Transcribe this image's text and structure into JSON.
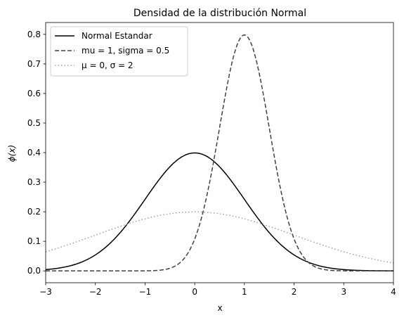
{
  "chart_data": {
    "type": "line",
    "title": "Densidad de la distribución Normal",
    "xlabel": "x",
    "ylabel": "ϕ(x)",
    "xlim": [
      -3,
      4
    ],
    "ylim": [
      -0.04,
      0.84
    ],
    "xticks": [
      -3,
      -2,
      -1,
      0,
      1,
      2,
      3,
      4
    ],
    "xtick_labels": [
      "−3",
      "−2",
      "−1",
      "0",
      "1",
      "2",
      "3",
      "4"
    ],
    "yticks": [
      0.0,
      0.1,
      0.2,
      0.3,
      0.4,
      0.5,
      0.6,
      0.7,
      0.8
    ],
    "ytick_labels": [
      "0.0",
      "0.1",
      "0.2",
      "0.3",
      "0.4",
      "0.5",
      "0.6",
      "0.7",
      "0.8"
    ],
    "grid": false,
    "legend_position": "top-left",
    "series": [
      {
        "name": "Normal Estandar",
        "color": "#000000",
        "style": "solid",
        "x": [
          -3,
          -2.5,
          -2,
          -1.5,
          -1,
          -0.5,
          0,
          0.5,
          1,
          1.5,
          2,
          2.5,
          3,
          3.5,
          4
        ],
        "y": [
          0.0044,
          0.0175,
          0.054,
          0.1295,
          0.242,
          0.3521,
          0.3989,
          0.3521,
          0.242,
          0.1295,
          0.054,
          0.0175,
          0.0044,
          0.0009,
          0.0001
        ]
      },
      {
        "name": "mu = 1, sigma = 0.5",
        "color": "#404040",
        "style": "dashed",
        "x": [
          -3,
          -0.5,
          0,
          0.25,
          0.5,
          0.75,
          1,
          1.25,
          1.5,
          1.75,
          2,
          2.25,
          2.5,
          3,
          4
        ],
        "y": [
          0.0,
          0.0089,
          0.108,
          0.259,
          0.484,
          0.704,
          0.798,
          0.704,
          0.484,
          0.259,
          0.108,
          0.035,
          0.0089,
          0.0003,
          0.0
        ],
        "note_removed": true
      },
      {
        "name": "μ = 0, σ = 2",
        "color": "#a0a0a0",
        "style": "dotted",
        "x": [
          -3,
          -2,
          -1,
          0,
          1,
          2,
          3,
          4
        ],
        "y": [
          0.0648,
          0.121,
          0.176,
          0.1995,
          0.176,
          0.121,
          0.0648,
          0.027
        ]
      }
    ]
  }
}
